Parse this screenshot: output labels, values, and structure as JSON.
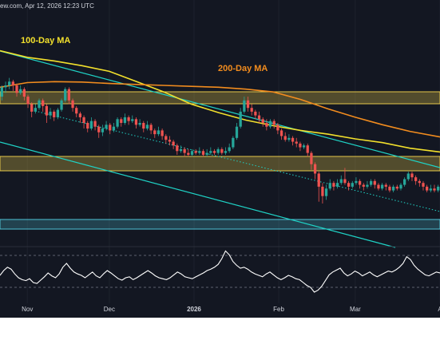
{
  "header": {
    "text": "ew.com, Apr 12, 2026 12:23 UTC"
  },
  "colors": {
    "background": "#131722",
    "up": "#26a69a",
    "down": "#ef5350",
    "ma100": "#f2e02c",
    "ma200": "#f28c1e",
    "channel": "#1fd3c6",
    "zone": "#e6c84a",
    "support_zone": "#4fc3d6",
    "oscillator": "#ffffff"
  },
  "chart_data": {
    "type": "line",
    "title": "",
    "xlabel": "",
    "ylabel": "",
    "x_ticks": [
      {
        "label": "Nov",
        "day": 10
      },
      {
        "label": "Dec",
        "day": 40
      },
      {
        "label": "2026",
        "day": 71,
        "bold": true
      },
      {
        "label": "Feb",
        "day": 102
      },
      {
        "label": "Mar",
        "day": 130
      },
      {
        "label": "A",
        "day": 161
      }
    ],
    "x_range_days": [
      0,
      161
    ],
    "y_range_price": [
      0,
      1
    ],
    "grid": true,
    "series": [
      {
        "name": "100-Day MA",
        "kind": "ma100",
        "points": [
          [
            0,
            0.985
          ],
          [
            10,
            0.95
          ],
          [
            20,
            0.93
          ],
          [
            30,
            0.905
          ],
          [
            40,
            0.875
          ],
          [
            50,
            0.82
          ],
          [
            60,
            0.765
          ],
          [
            70,
            0.7
          ],
          [
            80,
            0.655
          ],
          [
            90,
            0.615
          ],
          [
            100,
            0.585
          ],
          [
            110,
            0.56
          ],
          [
            120,
            0.54
          ],
          [
            130,
            0.515
          ],
          [
            140,
            0.495
          ],
          [
            150,
            0.465
          ],
          [
            161,
            0.445
          ]
        ]
      },
      {
        "name": "200-Day MA",
        "kind": "ma200",
        "points": [
          [
            0,
            0.79
          ],
          [
            10,
            0.815
          ],
          [
            20,
            0.82
          ],
          [
            30,
            0.818
          ],
          [
            40,
            0.81
          ],
          [
            50,
            0.805
          ],
          [
            60,
            0.8
          ],
          [
            70,
            0.795
          ],
          [
            80,
            0.79
          ],
          [
            90,
            0.78
          ],
          [
            100,
            0.765
          ],
          [
            110,
            0.725
          ],
          [
            120,
            0.675
          ],
          [
            130,
            0.63
          ],
          [
            140,
            0.59
          ],
          [
            150,
            0.555
          ],
          [
            161,
            0.525
          ]
        ]
      }
    ],
    "candles": [
      [
        0.74,
        0.79,
        0.8,
        0.72
      ],
      [
        0.79,
        0.8,
        0.82,
        0.76
      ],
      [
        0.8,
        0.82,
        0.84,
        0.78
      ],
      [
        0.82,
        0.8,
        0.83,
        0.77
      ],
      [
        0.8,
        0.76,
        0.81,
        0.74
      ],
      [
        0.76,
        0.78,
        0.8,
        0.75
      ],
      [
        0.78,
        0.74,
        0.79,
        0.72
      ],
      [
        0.74,
        0.7,
        0.75,
        0.68
      ],
      [
        0.7,
        0.66,
        0.71,
        0.63
      ],
      [
        0.66,
        0.68,
        0.7,
        0.65
      ],
      [
        0.68,
        0.72,
        0.73,
        0.67
      ],
      [
        0.72,
        0.69,
        0.73,
        0.66
      ],
      [
        0.69,
        0.64,
        0.7,
        0.6
      ],
      [
        0.64,
        0.66,
        0.68,
        0.62
      ],
      [
        0.66,
        0.63,
        0.67,
        0.61
      ],
      [
        0.63,
        0.67,
        0.68,
        0.62
      ],
      [
        0.67,
        0.72,
        0.73,
        0.66
      ],
      [
        0.72,
        0.78,
        0.79,
        0.71
      ],
      [
        0.78,
        0.72,
        0.79,
        0.7
      ],
      [
        0.72,
        0.68,
        0.73,
        0.66
      ],
      [
        0.68,
        0.65,
        0.69,
        0.63
      ],
      [
        0.65,
        0.63,
        0.66,
        0.6
      ],
      [
        0.63,
        0.6,
        0.64,
        0.57
      ],
      [
        0.6,
        0.57,
        0.61,
        0.55
      ],
      [
        0.57,
        0.61,
        0.63,
        0.56
      ],
      [
        0.61,
        0.58,
        0.62,
        0.56
      ],
      [
        0.58,
        0.55,
        0.59,
        0.52
      ],
      [
        0.55,
        0.57,
        0.59,
        0.53
      ],
      [
        0.57,
        0.59,
        0.61,
        0.56
      ],
      [
        0.59,
        0.56,
        0.6,
        0.54
      ],
      [
        0.56,
        0.58,
        0.6,
        0.55
      ],
      [
        0.58,
        0.62,
        0.63,
        0.57
      ],
      [
        0.62,
        0.6,
        0.63,
        0.58
      ],
      [
        0.6,
        0.63,
        0.65,
        0.59
      ],
      [
        0.63,
        0.61,
        0.64,
        0.59
      ],
      [
        0.61,
        0.62,
        0.64,
        0.6
      ],
      [
        0.62,
        0.59,
        0.63,
        0.57
      ],
      [
        0.59,
        0.6,
        0.62,
        0.58
      ],
      [
        0.6,
        0.57,
        0.61,
        0.55
      ],
      [
        0.57,
        0.59,
        0.61,
        0.56
      ],
      [
        0.59,
        0.56,
        0.6,
        0.54
      ],
      [
        0.56,
        0.54,
        0.57,
        0.52
      ],
      [
        0.54,
        0.56,
        0.58,
        0.53
      ],
      [
        0.56,
        0.53,
        0.57,
        0.51
      ],
      [
        0.53,
        0.51,
        0.54,
        0.49
      ],
      [
        0.51,
        0.5,
        0.53,
        0.48
      ],
      [
        0.5,
        0.48,
        0.51,
        0.46
      ],
      [
        0.48,
        0.45,
        0.49,
        0.43
      ],
      [
        0.45,
        0.46,
        0.48,
        0.44
      ],
      [
        0.46,
        0.44,
        0.47,
        0.42
      ],
      [
        0.44,
        0.43,
        0.46,
        0.42
      ],
      [
        0.43,
        0.45,
        0.46,
        0.42
      ],
      [
        0.45,
        0.44,
        0.46,
        0.43
      ],
      [
        0.44,
        0.45,
        0.47,
        0.43
      ],
      [
        0.45,
        0.43,
        0.46,
        0.42
      ],
      [
        0.43,
        0.44,
        0.46,
        0.42
      ],
      [
        0.44,
        0.45,
        0.47,
        0.43
      ],
      [
        0.45,
        0.44,
        0.46,
        0.43
      ],
      [
        0.44,
        0.46,
        0.47,
        0.43
      ],
      [
        0.46,
        0.44,
        0.47,
        0.43
      ],
      [
        0.44,
        0.45,
        0.47,
        0.43
      ],
      [
        0.45,
        0.47,
        0.49,
        0.44
      ],
      [
        0.47,
        0.52,
        0.53,
        0.46
      ],
      [
        0.52,
        0.58,
        0.6,
        0.51
      ],
      [
        0.58,
        0.66,
        0.68,
        0.57
      ],
      [
        0.66,
        0.72,
        0.74,
        0.65
      ],
      [
        0.72,
        0.68,
        0.74,
        0.66
      ],
      [
        0.68,
        0.66,
        0.7,
        0.64
      ],
      [
        0.66,
        0.64,
        0.67,
        0.62
      ],
      [
        0.64,
        0.62,
        0.66,
        0.6
      ],
      [
        0.62,
        0.6,
        0.63,
        0.58
      ],
      [
        0.6,
        0.58,
        0.62,
        0.56
      ],
      [
        0.58,
        0.61,
        0.62,
        0.57
      ],
      [
        0.61,
        0.59,
        0.62,
        0.57
      ],
      [
        0.59,
        0.56,
        0.6,
        0.54
      ],
      [
        0.56,
        0.53,
        0.57,
        0.51
      ],
      [
        0.53,
        0.51,
        0.55,
        0.5
      ],
      [
        0.51,
        0.52,
        0.54,
        0.5
      ],
      [
        0.52,
        0.5,
        0.53,
        0.48
      ],
      [
        0.5,
        0.49,
        0.52,
        0.47
      ],
      [
        0.49,
        0.47,
        0.5,
        0.45
      ],
      [
        0.47,
        0.48,
        0.49,
        0.46
      ],
      [
        0.48,
        0.44,
        0.49,
        0.42
      ],
      [
        0.44,
        0.38,
        0.45,
        0.35
      ],
      [
        0.38,
        0.33,
        0.39,
        0.3
      ],
      [
        0.33,
        0.26,
        0.34,
        0.18
      ],
      [
        0.26,
        0.21,
        0.28,
        0.17
      ],
      [
        0.21,
        0.25,
        0.27,
        0.19
      ],
      [
        0.25,
        0.28,
        0.3,
        0.24
      ],
      [
        0.28,
        0.26,
        0.29,
        0.24
      ],
      [
        0.26,
        0.28,
        0.3,
        0.25
      ],
      [
        0.28,
        0.3,
        0.32,
        0.27
      ],
      [
        0.3,
        0.28,
        0.36,
        0.27
      ],
      [
        0.28,
        0.26,
        0.29,
        0.24
      ],
      [
        0.26,
        0.28,
        0.29,
        0.25
      ],
      [
        0.28,
        0.29,
        0.31,
        0.27
      ],
      [
        0.29,
        0.27,
        0.3,
        0.25
      ],
      [
        0.27,
        0.26,
        0.28,
        0.24
      ],
      [
        0.26,
        0.27,
        0.29,
        0.25
      ],
      [
        0.27,
        0.29,
        0.3,
        0.26
      ],
      [
        0.29,
        0.27,
        0.3,
        0.25
      ],
      [
        0.27,
        0.25,
        0.28,
        0.24
      ],
      [
        0.25,
        0.27,
        0.28,
        0.24
      ],
      [
        0.27,
        0.26,
        0.28,
        0.24
      ],
      [
        0.26,
        0.24,
        0.27,
        0.23
      ],
      [
        0.24,
        0.26,
        0.27,
        0.23
      ],
      [
        0.26,
        0.25,
        0.27,
        0.24
      ],
      [
        0.25,
        0.27,
        0.28,
        0.24
      ],
      [
        0.27,
        0.3,
        0.31,
        0.26
      ],
      [
        0.3,
        0.33,
        0.34,
        0.29
      ],
      [
        0.33,
        0.31,
        0.34,
        0.29
      ],
      [
        0.31,
        0.29,
        0.32,
        0.27
      ],
      [
        0.29,
        0.28,
        0.3,
        0.26
      ],
      [
        0.28,
        0.26,
        0.29,
        0.24
      ],
      [
        0.26,
        0.24,
        0.27,
        0.23
      ],
      [
        0.24,
        0.25,
        0.27,
        0.23
      ],
      [
        0.25,
        0.24,
        0.27,
        0.23
      ],
      [
        0.24,
        0.26,
        0.27,
        0.23
      ]
    ],
    "oscillator": [
      0.45,
      0.55,
      0.62,
      0.58,
      0.48,
      0.4,
      0.36,
      0.34,
      0.38,
      0.3,
      0.28,
      0.35,
      0.42,
      0.5,
      0.44,
      0.4,
      0.48,
      0.62,
      0.7,
      0.6,
      0.52,
      0.48,
      0.45,
      0.4,
      0.46,
      0.52,
      0.44,
      0.4,
      0.48,
      0.55,
      0.5,
      0.44,
      0.38,
      0.35,
      0.4,
      0.42,
      0.36,
      0.4,
      0.45,
      0.5,
      0.55,
      0.5,
      0.44,
      0.4,
      0.38,
      0.36,
      0.4,
      0.46,
      0.52,
      0.48,
      0.42,
      0.4,
      0.38,
      0.42,
      0.46,
      0.5,
      0.55,
      0.58,
      0.62,
      0.68,
      0.8,
      0.96,
      0.88,
      0.74,
      0.66,
      0.6,
      0.62,
      0.58,
      0.52,
      0.48,
      0.45,
      0.42,
      0.48,
      0.52,
      0.46,
      0.4,
      0.36,
      0.4,
      0.45,
      0.42,
      0.38,
      0.36,
      0.3,
      0.24,
      0.2,
      0.1,
      0.14,
      0.22,
      0.34,
      0.46,
      0.52,
      0.56,
      0.6,
      0.5,
      0.44,
      0.48,
      0.54,
      0.5,
      0.44,
      0.48,
      0.52,
      0.46,
      0.42,
      0.46,
      0.5,
      0.54,
      0.52,
      0.56,
      0.62,
      0.7,
      0.84,
      0.78,
      0.66,
      0.58,
      0.52,
      0.46,
      0.44,
      0.48,
      0.52,
      0.5
    ]
  }
}
